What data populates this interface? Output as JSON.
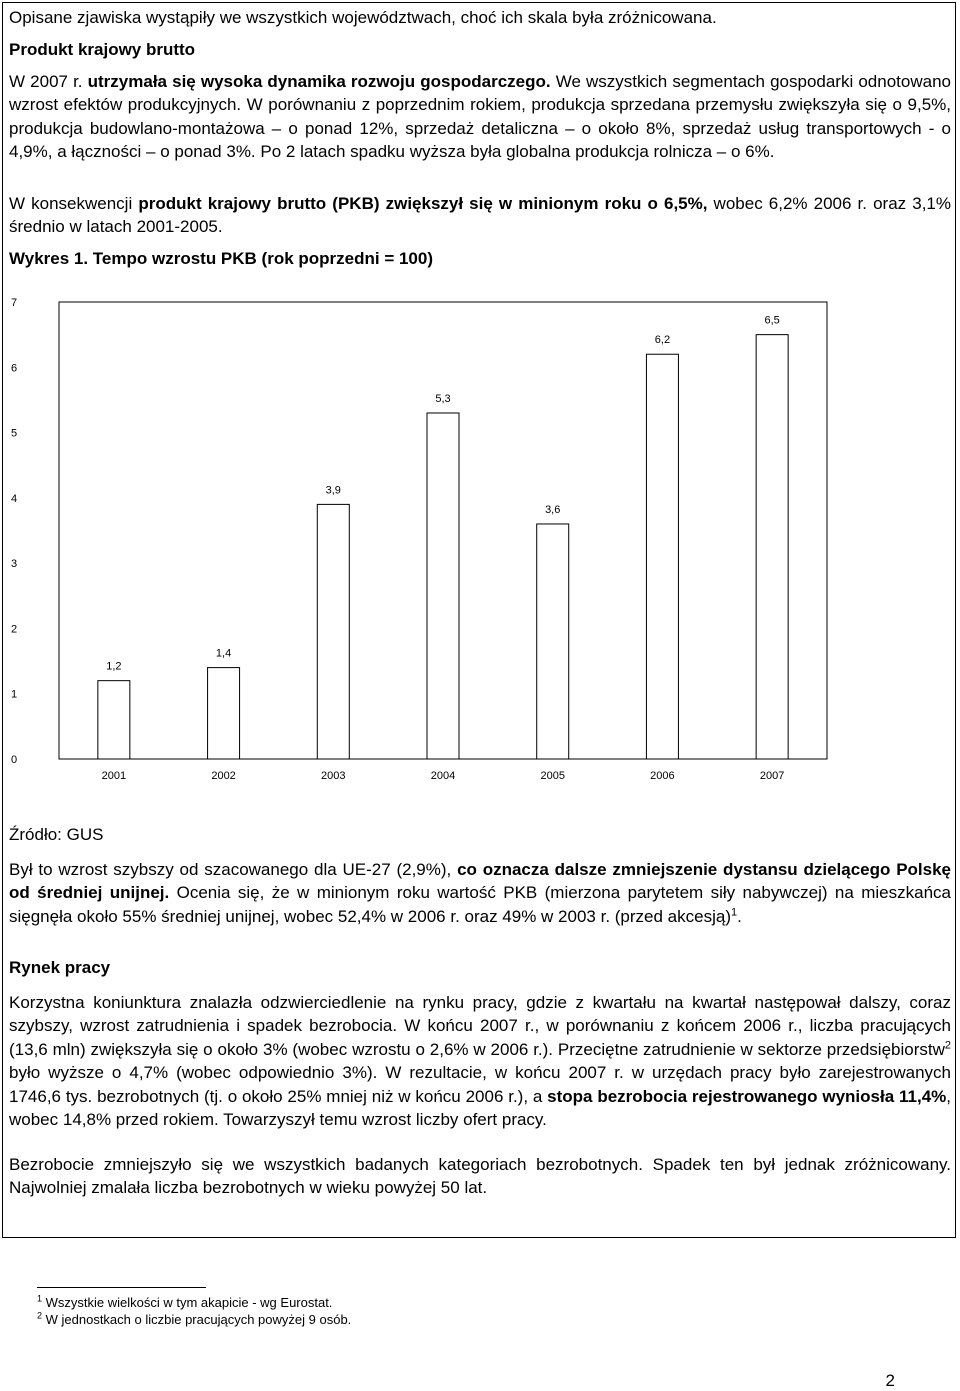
{
  "intro": {
    "line": "Opisane zjawiska wystąpiły we wszystkich województwach, choć ich skala była zróżnicowana."
  },
  "gdp_section": {
    "heading": "Produkt krajowy brutto",
    "p1_a": "W 2007 r. ",
    "p1_b": "utrzymała się wysoka dynamika rozwoju gospodarczego.",
    "p1_c": " We wszystkich segmentach gospodarki odnotowano wzrost efektów produkcyjnych. W porównaniu z poprzednim rokiem, produkcja sprzedana przemysłu zwiększyła się o 9,5%, produkcja budowlano-montażowa – o ponad 12%, sprzedaż detaliczna – o około 8%, sprzedaż usług transportowych - o 4,9%, a łączności – o ponad 3%. Po 2 latach spadku wyższa była globalna produkcja rolnicza – o 6%.",
    "p2_a": "W konsekwencji ",
    "p2_b": "produkt krajowy brutto (PKB) zwiększył się w minionym roku o 6,5%,",
    "p2_c": " wobec 6,2% 2006 r. oraz 3,1% średnio w latach 2001-2005.",
    "chart_caption": "Wykres 1. Tempo wzrostu PKB (rok poprzedni = 100)",
    "source": "Źródło: GUS",
    "p3_a": "Był to wzrost szybszy od szacowanego dla UE-27 (2,9%), ",
    "p3_b": "co oznacza dalsze zmniejszenie dystansu dzielącego Polskę od średniej unijnej.",
    "p3_c": " Ocenia się, że w minionym roku wartość PKB (mierzona parytetem siły nabywczej) na mieszkańca sięgnęła około 55% średniej unijnej, wobec 52,4% w 2006 r. oraz 49% w 2003 r. (przed akcesją)",
    "p3_sup": "1",
    "p3_d": "."
  },
  "chart_data": {
    "type": "bar",
    "categories": [
      "2001",
      "2002",
      "2003",
      "2004",
      "2005",
      "2006",
      "2007"
    ],
    "values": [
      1.2,
      1.4,
      3.9,
      5.3,
      3.6,
      6.2,
      6.5
    ],
    "data_labels": [
      "1,2",
      "1,4",
      "3,9",
      "5,3",
      "3,6",
      "6,2",
      "6,5"
    ],
    "yticks": [
      0,
      1,
      2,
      3,
      4,
      5,
      6,
      7
    ],
    "ylim": [
      0,
      7
    ],
    "bar_color": "#ffffff",
    "grid": false,
    "legend": "none"
  },
  "labor_section": {
    "heading": "Rynek pracy",
    "p1_a": "Korzystna koniunktura znalazła odzwierciedlenie na rynku pracy, gdzie z kwartału na kwartał następował dalszy, coraz szybszy, wzrost zatrudnienia i spadek bezrobocia. W końcu 2007 r., w porównaniu z końcem 2006 r., liczba pracujących (13,6 mln) zwiększyła się o około 3% (wobec wzrostu o 2,6% w 2006 r.). Przeciętne zatrudnienie w sektorze przedsiębiorstw",
    "p1_sup": "2",
    "p1_b": " było wyższe o 4,7% (wobec odpowiednio 3%). W rezultacie, w końcu 2007 r. w urzędach pracy było zarejestrowanych 1746,6 tys. bezrobotnych (tj. o około 25% mniej niż w końcu 2006 r.), a ",
    "p1_c": "stopa bezrobocia rejestrowanego wyniosła 11,4%",
    "p1_d": ", wobec 14,8% przed rokiem. Towarzyszył temu wzrost liczby ofert pracy.",
    "p2": "Bezrobocie zmniejszyło się we wszystkich badanych kategoriach bezrobotnych. Spadek ten był jednak zróżnicowany. Najwolniej zmalała liczba bezrobotnych w wieku powyżej 50 lat."
  },
  "footnotes": [
    {
      "num": "1",
      "text": " Wszystkie wielkości w tym akapicie - wg Eurostat."
    },
    {
      "num": "2",
      "text": " W jednostkach o liczbie pracujących powyżej 9 osób."
    }
  ],
  "page_number": "2"
}
